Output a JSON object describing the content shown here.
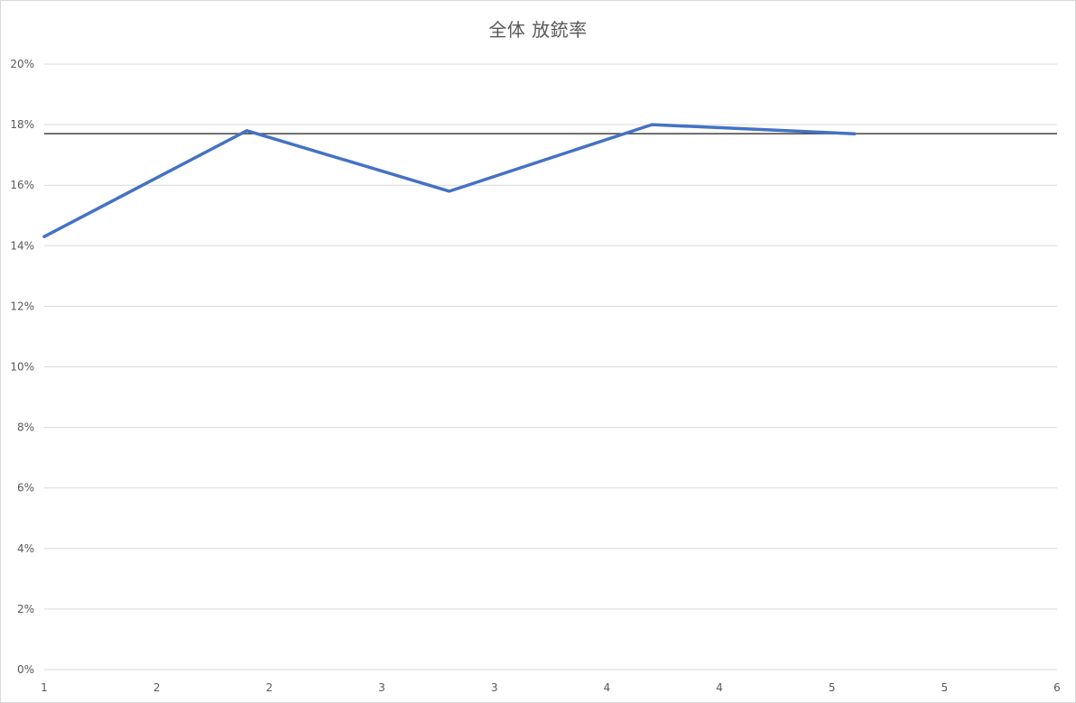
{
  "chart_data": {
    "type": "line",
    "title": "全体 放銃率",
    "xlabel": "",
    "ylabel": "",
    "x_tick_labels": [
      "1",
      "2",
      "2",
      "3",
      "3",
      "4",
      "4",
      "5",
      "5",
      "6"
    ],
    "ylim": [
      0,
      0.2
    ],
    "y_tick_values": [
      0,
      0.02,
      0.04,
      0.06,
      0.08,
      0.1,
      0.12,
      0.14,
      0.16,
      0.18,
      0.2
    ],
    "y_tick_labels": [
      "0%",
      "2%",
      "4%",
      "6%",
      "8%",
      "10%",
      "12%",
      "14%",
      "16%",
      "18%",
      "20%"
    ],
    "grid": true,
    "legend": "none",
    "series": [
      {
        "color": "#4472C4",
        "x": [
          1,
          2,
          3,
          4,
          5
        ],
        "y": [
          0.143,
          0.178,
          0.158,
          0.18,
          0.177
        ]
      }
    ],
    "reference_line": {
      "y": 0.177,
      "color": "#404040"
    }
  }
}
